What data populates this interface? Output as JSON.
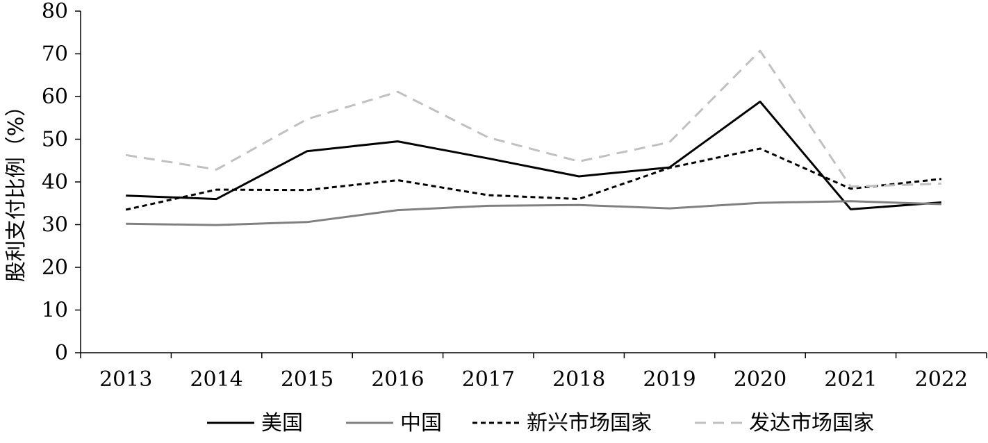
{
  "chart_data": {
    "type": "line",
    "title": "",
    "xlabel": "",
    "ylabel": "股利支付比例（%）",
    "ylim": [
      0,
      80
    ],
    "yticks": [
      0,
      10,
      20,
      30,
      40,
      50,
      60,
      70,
      80
    ],
    "categories": [
      "2013",
      "2014",
      "2015",
      "2016",
      "2017",
      "2018",
      "2019",
      "2020",
      "2021",
      "2022"
    ],
    "grid": false,
    "legend_position": "bottom",
    "series": [
      {
        "name": "美国",
        "color": "#000000",
        "style": "solid",
        "values": [
          36.8,
          36.0,
          47.2,
          49.5,
          45.5,
          41.3,
          43.4,
          58.8,
          33.6,
          35.2
        ]
      },
      {
        "name": "中国",
        "color": "#808080",
        "style": "solid",
        "values": [
          30.2,
          29.9,
          30.6,
          33.4,
          34.4,
          34.6,
          33.8,
          35.1,
          35.5,
          34.8
        ]
      },
      {
        "name": "新兴市场国家",
        "color": "#000000",
        "style": "dotted",
        "values": [
          33.5,
          38.2,
          38.1,
          40.4,
          36.9,
          36.0,
          43.3,
          47.8,
          38.4,
          40.7
        ]
      },
      {
        "name": "发达市场国家",
        "color": "#c0c0c0",
        "style": "dashed",
        "values": [
          46.3,
          42.9,
          54.7,
          61.1,
          50.4,
          44.8,
          49.3,
          70.7,
          38.9,
          39.6
        ]
      }
    ]
  }
}
